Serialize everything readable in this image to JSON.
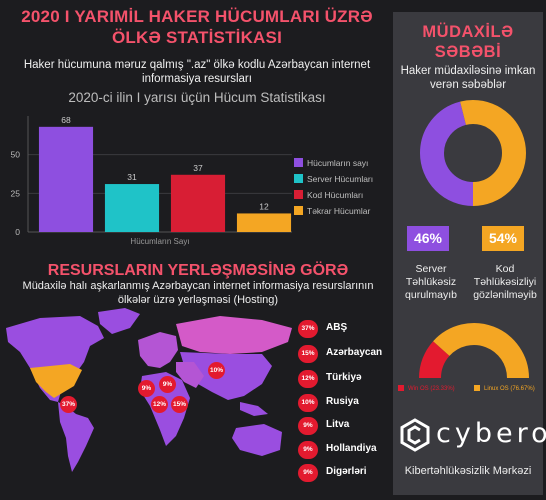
{
  "header": {
    "title": "2020 I YARIMİL HAKER HÜCUMLARI ÜZRƏ ÖLKƏ STATİSTİKASI",
    "subtitle": "Haker hücumuna məruz qalmış \".az\" ölkə kodlu Azərbaycan internet informasiya resursları"
  },
  "chart_data": [
    {
      "type": "bar",
      "title": "2020-ci ilin I yarısı üçün Hücum Statistikası",
      "xlabel": "Hücumların Sayı",
      "ylabel": "",
      "ylim": [
        0,
        75
      ],
      "yticks": [
        0,
        25,
        50
      ],
      "categories": [
        "Hücumların Sayı"
      ],
      "series": [
        {
          "name": "Hücumların sayı",
          "values": [
            68
          ],
          "color": "#8e4fe0"
        },
        {
          "name": "Server Hücumları",
          "values": [
            31
          ],
          "color": "#1fc3c8"
        },
        {
          "name": "Kod Hücumları",
          "values": [
            37
          ],
          "color": "#d81e34"
        },
        {
          "name": "Təkrar Hücumlar",
          "values": [
            12
          ],
          "color": "#f4a623"
        }
      ],
      "grid": true,
      "legend": "right"
    },
    {
      "type": "pie",
      "subtype": "donut",
      "title": "Haker müdaxiləsinə imkan verən səbəblər",
      "slices": [
        {
          "label": "Server Təhlükəsiz qurulmayıb",
          "value": 46,
          "color": "#8e4fe0"
        },
        {
          "label": "Kod Təhlükəsizliyi gözlənilməyib",
          "value": 54,
          "color": "#f4a623"
        }
      ]
    },
    {
      "type": "pie",
      "subtype": "half-donut",
      "slices": [
        {
          "label": "Win OS (23.33%)",
          "value": 23.33,
          "color": "#e31a2f"
        },
        {
          "label": "Linux OS (76.67%)",
          "value": 76.67,
          "color": "#f4a623"
        }
      ]
    }
  ],
  "section2": {
    "title": "RESURSLARIN YERLƏŞMƏSİNƏ GÖRƏ",
    "subtitle": "Müdaxilə halı aşkarlanmış Azərbaycan internet informasiya resurslarının ölkələr üzrə yerləşməsi (Hosting)"
  },
  "countries": [
    {
      "pct": "37%",
      "name": "ABŞ"
    },
    {
      "pct": "15%",
      "name": "Azərbaycan"
    },
    {
      "pct": "12%",
      "name": "Türkiyə"
    },
    {
      "pct": "10%",
      "name": "Rusiya"
    },
    {
      "pct": "9%",
      "name": "Litva"
    },
    {
      "pct": "9%",
      "name": "Hollandiya"
    },
    {
      "pct": "9%",
      "name": "Digərləri"
    }
  ],
  "map_badges": [
    "37%",
    "9%",
    "9%",
    "12%",
    "15%",
    "10%"
  ],
  "panel": {
    "title": "MÜDAXİLƏ SƏBƏBİ",
    "subtitle": "Haker müdaxiləsinə imkan verən səbəblər",
    "pct_left": "46%",
    "pct_right": "54%",
    "reason_left": "Server Təhlükəsiz qurulmayıb",
    "reason_right": "Kod Təhlükəsizliyi gözlənilməyib",
    "brand": "cybero",
    "org": "Kibertəhlükəsizlik Mərkəzi"
  }
}
